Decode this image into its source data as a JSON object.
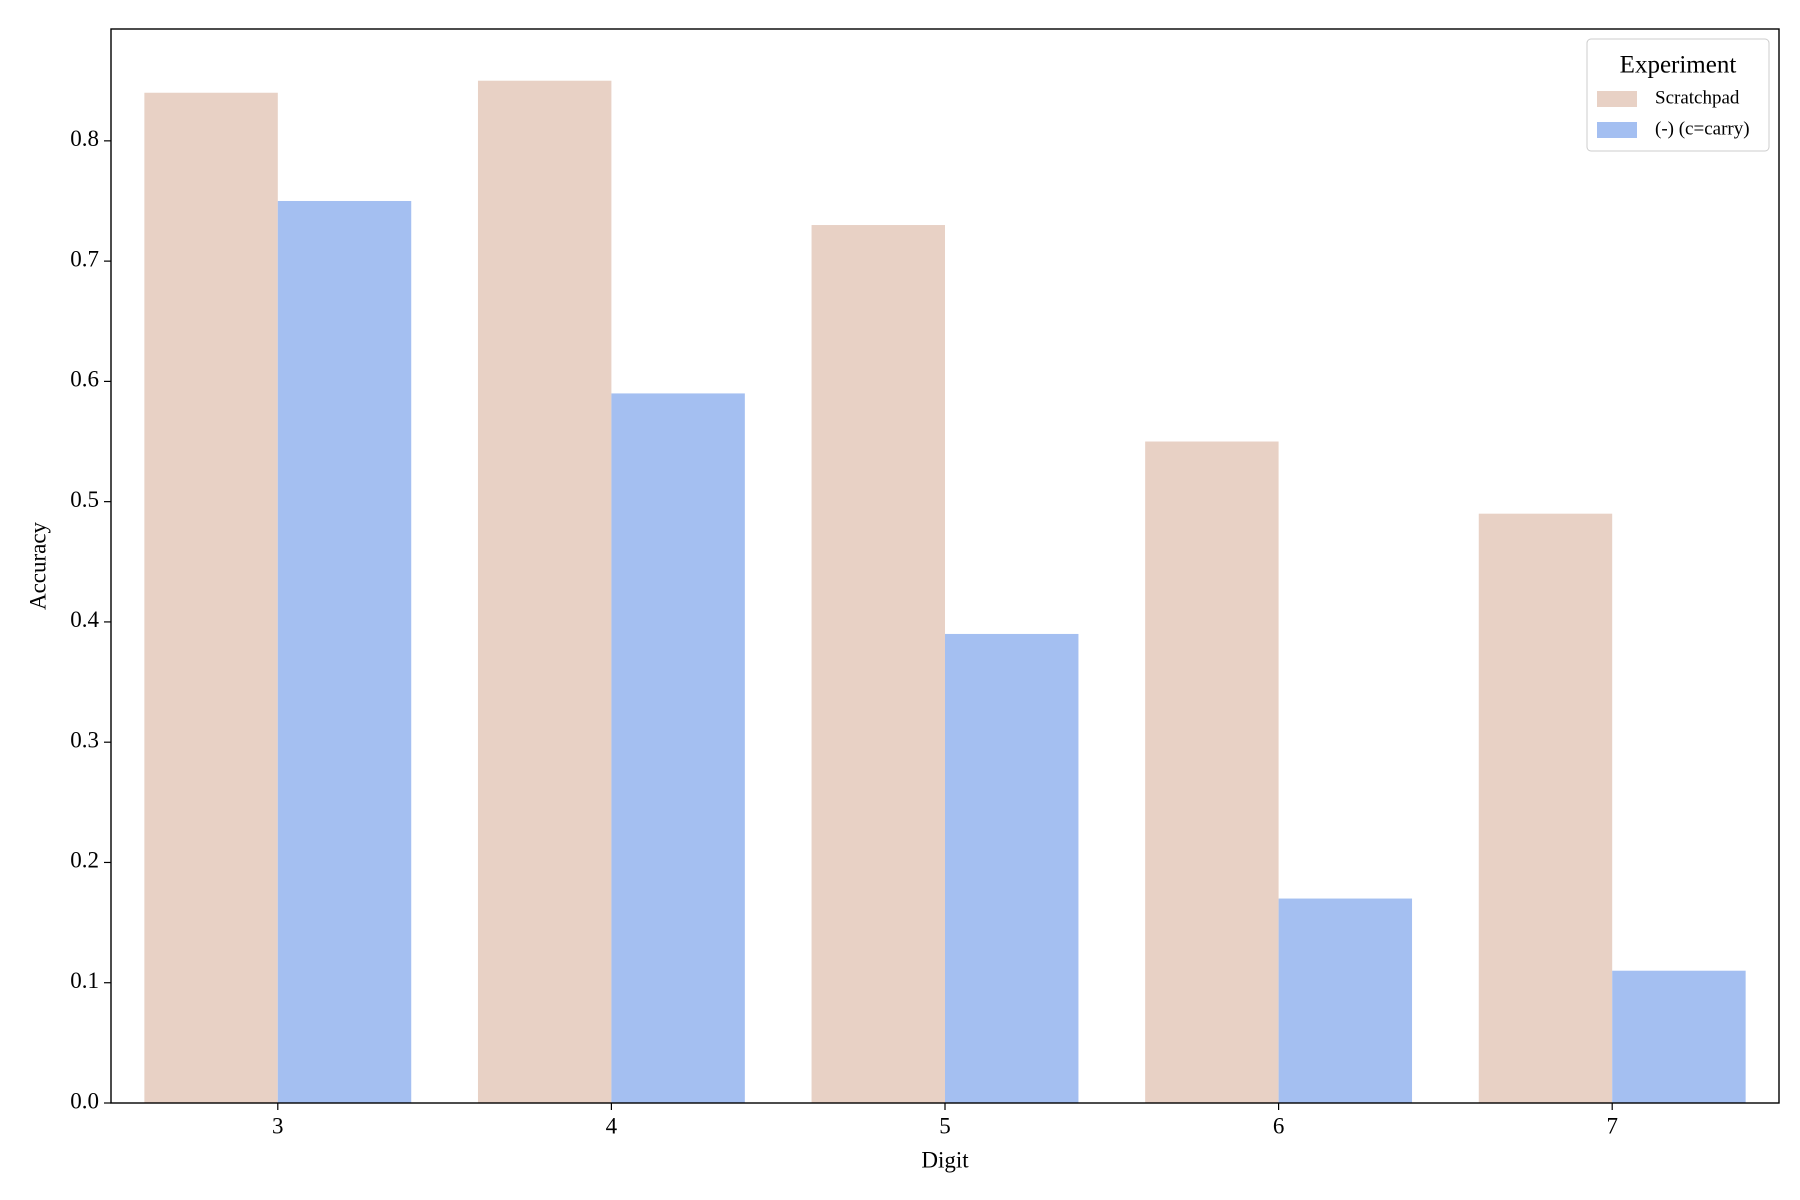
{
  "chart_data": {
    "type": "bar",
    "x_label": "Digit",
    "y_label": "Accuracy",
    "categories": [
      "3",
      "4",
      "5",
      "6",
      "7"
    ],
    "series": [
      {
        "name": "Scratchpad",
        "color": "#e8d1c5",
        "values": [
          0.84,
          0.85,
          0.73,
          0.55,
          0.49
        ]
      },
      {
        "name": "(-) (c=carry)",
        "color": "#a4bff1",
        "values": [
          0.75,
          0.59,
          0.39,
          0.17,
          0.11
        ]
      }
    ],
    "ylim": [
      0,
      0.893
    ],
    "yticks": [
      {
        "value": 0,
        "label": "0.0"
      },
      0.1,
      0.2,
      0.3,
      0.4,
      0.5,
      0.6,
      0.7,
      0.8
    ],
    "legend_title": "Experiment",
    "legend_position": "upper right",
    "grid": false
  }
}
